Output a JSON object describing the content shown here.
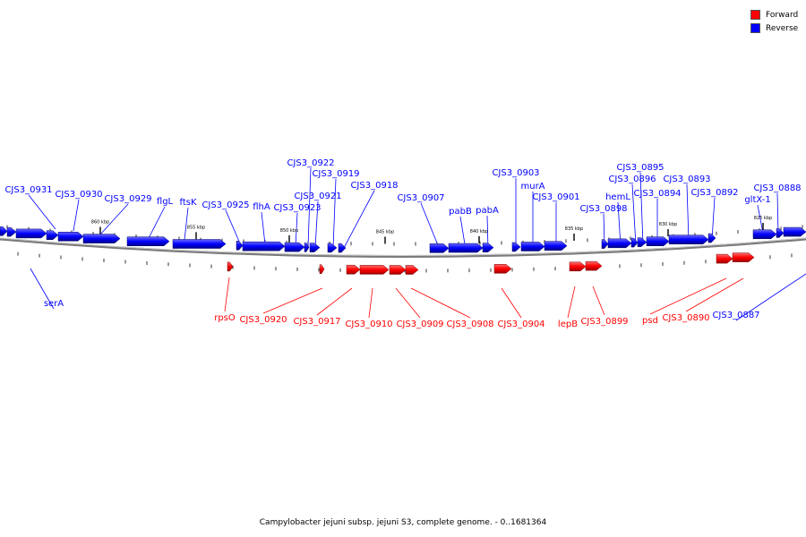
{
  "colors": {
    "forward": "#ff0000",
    "reverse": "#0000ff",
    "backbone": "#8a8a8a"
  },
  "legend": {
    "forward": "Forward",
    "reverse": "Reverse"
  },
  "caption": "Campylobacter jejuni subsp. jejuni S3, complete genome. - 0..1681364",
  "scale_labels": [
    "860 kbp",
    "855 kbp",
    "850 kbp",
    "845 kbp",
    "840 kbp",
    "835 kbp",
    "830 kbp",
    "825 kbp"
  ],
  "reverse_genes": [
    "CJS3_0931",
    "CJS3_0930",
    "CJS3_0929",
    "flgL",
    "ftsK",
    "CJS3_0925",
    "flhA",
    "CJS3_0923",
    "CJS3_0922",
    "CJS3_0921",
    "CJS3_0919",
    "CJS3_0918",
    "CJS3_0907",
    "pabB",
    "pabA",
    "CJS3_0903",
    "murA",
    "CJS3_0901",
    "CJS3_0898",
    "hemL",
    "CJS3_0896",
    "CJS3_0895",
    "CJS3_0894",
    "CJS3_0893",
    "CJS3_0892",
    "gltX-1",
    "CJS3_0888",
    "serA",
    "CJS3_0887"
  ],
  "forward_genes": [
    "rpsO",
    "CJS3_0920",
    "CJS3_0917",
    "CJS3_0910",
    "CJS3_0909",
    "CJS3_0908",
    "CJS3_0904",
    "lepB",
    "CJS3_0899",
    "psd",
    "CJS3_0890"
  ]
}
